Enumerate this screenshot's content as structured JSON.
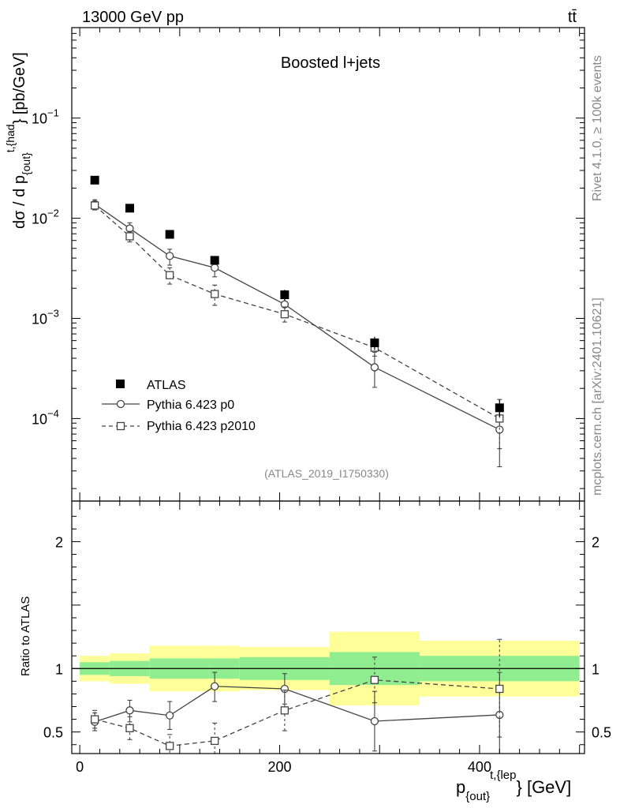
{
  "header": {
    "energy_label": "13000 GeV pp",
    "process_label": "tt̄"
  },
  "side": {
    "rivet_label": "Rivet 4.1.0, ≥ 100k events",
    "source_label": "mcplots.cern.ch [arXiv:2401.10621]"
  },
  "chart_data": {
    "type": "scatter",
    "title": "Boosted l+jets",
    "analysis_id": "(ATLAS_2019_I1750330)",
    "xlabel_main": "p",
    "xlabel_sub": "{out}",
    "xlabel_sup": "t,{lep",
    "xlabel_tail": "} [GeV]",
    "ylabel_main": "dσ / d p",
    "ylabel_sub": "{out}",
    "ylabel_sup": "t,{had",
    "ylabel_tail": "} [pb/GeV]",
    "ratio_ylabel": "Ratio to ATLAS",
    "xlim": [
      -8,
      505
    ],
    "ylim": [
      1.5e-05,
      0.8
    ],
    "yscale": "log",
    "ratio_ylim": [
      0.33,
      2.32
    ],
    "x_ticks": [
      0,
      200,
      400
    ],
    "x_tick_labels": [
      "0",
      "200",
      "400"
    ],
    "y_ticks": [
      0.0001,
      0.001,
      0.01,
      0.1
    ],
    "y_tick_labels": [
      {
        "base": "10",
        "exp": "−4"
      },
      {
        "base": "10",
        "exp": "−3"
      },
      {
        "base": "10",
        "exp": "−2"
      },
      {
        "base": "10",
        "exp": "−1"
      }
    ],
    "ratio_ticks": [
      0.5,
      1,
      2
    ],
    "ratio_tick_labels": [
      "0.5",
      "1",
      "2"
    ],
    "bin_edges": [
      0,
      30,
      70,
      130,
      160,
      250,
      340,
      500
    ],
    "x": [
      15,
      50,
      90,
      135,
      205,
      295,
      420
    ],
    "series": [
      {
        "name": "ATLAS",
        "marker": "filled-square",
        "values": [
          0.024,
          0.0126,
          0.0069,
          0.0038,
          0.00172,
          0.00057,
          0.000128
        ],
        "err_rel": [
          0.05,
          0.06,
          0.08,
          0.1,
          0.12,
          0.15,
          0.2
        ]
      },
      {
        "name": "Pythia 6.423 p0",
        "marker": "open-circle",
        "line": "solid",
        "values": [
          0.0138,
          0.0079,
          0.0042,
          0.0032,
          0.00138,
          0.000325,
          7.75e-05
        ],
        "err_lo": [
          0.0123,
          0.0068,
          0.0034,
          0.0026,
          0.00115,
          0.000205,
          3.3e-05
        ],
        "err_hi": [
          0.0153,
          0.009,
          0.0049,
          0.0038,
          0.0016,
          0.00046,
          0.000125
        ],
        "ratio": [
          0.58,
          0.67,
          0.63,
          0.86,
          0.84,
          0.585,
          0.635
        ],
        "ratio_lo": [
          0.51,
          0.58,
          0.52,
          0.74,
          0.72,
          0.35,
          0.28
        ],
        "ratio_hi": [
          0.65,
          0.75,
          0.74,
          0.97,
          0.96,
          0.82,
          0.97
        ]
      },
      {
        "name": "Pythia 6.423 p2010",
        "marker": "open-square",
        "line": "dashed",
        "values": [
          0.0134,
          0.0066,
          0.0027,
          0.00175,
          0.0011,
          0.00051,
          0.0001
        ],
        "err_lo": [
          0.0121,
          0.0058,
          0.0022,
          0.00135,
          0.00092,
          0.00042,
          5e-05
        ],
        "err_hi": [
          0.0147,
          0.0074,
          0.0032,
          0.00215,
          0.0013,
          0.0006,
          0.000155
        ],
        "ratio": [
          0.6,
          0.53,
          0.39,
          0.43,
          0.67,
          0.91,
          0.84
        ],
        "ratio_lo": [
          0.53,
          0.44,
          0.3,
          0.33,
          0.51,
          0.73,
          0.46
        ],
        "ratio_hi": [
          0.67,
          0.62,
          0.48,
          0.57,
          0.83,
          1.09,
          1.23
        ]
      }
    ],
    "ratio_band_green": [
      [
        0.95,
        1.05
      ],
      [
        0.94,
        1.06
      ],
      [
        0.92,
        1.08
      ],
      [
        0.92,
        1.08
      ],
      [
        0.91,
        1.09
      ],
      [
        0.87,
        1.13
      ],
      [
        0.9,
        1.1
      ]
    ],
    "ratio_band_yellow": [
      [
        0.9,
        1.1
      ],
      [
        0.88,
        1.12
      ],
      [
        0.82,
        1.18
      ],
      [
        0.82,
        1.18
      ],
      [
        0.83,
        1.17
      ],
      [
        0.71,
        1.29
      ],
      [
        0.78,
        1.22
      ]
    ],
    "colors": {
      "data": "#000000",
      "mc": "#444444",
      "band_green": "#90ee90",
      "band_yellow": "#ffff99"
    }
  }
}
